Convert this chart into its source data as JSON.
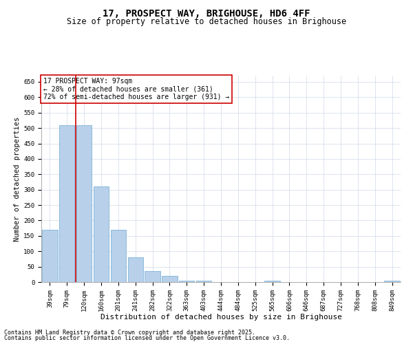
{
  "title1": "17, PROSPECT WAY, BRIGHOUSE, HD6 4FF",
  "title2": "Size of property relative to detached houses in Brighouse",
  "xlabel": "Distribution of detached houses by size in Brighouse",
  "ylabel": "Number of detached properties",
  "categories": [
    "39sqm",
    "79sqm",
    "120sqm",
    "160sqm",
    "201sqm",
    "241sqm",
    "282sqm",
    "322sqm",
    "363sqm",
    "403sqm",
    "444sqm",
    "484sqm",
    "525sqm",
    "565sqm",
    "606sqm",
    "646sqm",
    "687sqm",
    "727sqm",
    "768sqm",
    "808sqm",
    "849sqm"
  ],
  "values": [
    170,
    510,
    510,
    310,
    170,
    80,
    35,
    20,
    5,
    5,
    0,
    0,
    0,
    5,
    0,
    0,
    0,
    0,
    0,
    0,
    5
  ],
  "bar_color": "#b8d0ea",
  "bar_edgecolor": "#6aaad4",
  "vline_color": "#cc0000",
  "annotation_text": "17 PROSPECT WAY: 97sqm\n← 28% of detached houses are smaller (361)\n72% of semi-detached houses are larger (931) →",
  "annotation_box_color": "#ffffff",
  "annotation_box_edgecolor": "#cc0000",
  "ylim": [
    0,
    670
  ],
  "yticks": [
    0,
    50,
    100,
    150,
    200,
    250,
    300,
    350,
    400,
    450,
    500,
    550,
    600,
    650
  ],
  "background_color": "#ffffff",
  "grid_color": "#d0d8e8",
  "footer1": "Contains HM Land Registry data © Crown copyright and database right 2025.",
  "footer2": "Contains public sector information licensed under the Open Government Licence v3.0.",
  "title1_fontsize": 10,
  "title2_fontsize": 8.5,
  "xlabel_fontsize": 8,
  "ylabel_fontsize": 7.5,
  "tick_fontsize": 6.5,
  "annotation_fontsize": 7,
  "footer_fontsize": 6
}
